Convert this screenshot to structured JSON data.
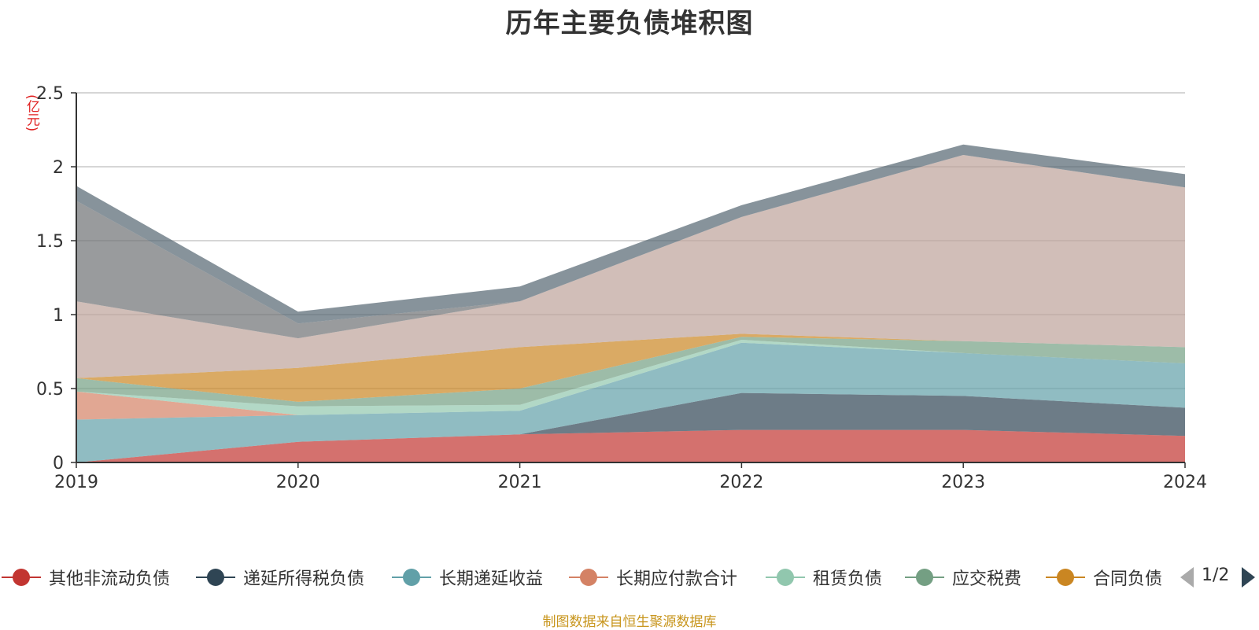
{
  "title": "历年主要负债堆积图",
  "unit": "(亿元)",
  "source_note": "制图数据来自恒生聚源数据库",
  "pager": {
    "text": "1/2"
  },
  "chart_data": {
    "type": "area",
    "stacked": true,
    "title": "历年主要负债堆积图",
    "ylabel": "(亿元)",
    "ylim": [
      0,
      2.5
    ],
    "yticks": [
      "0",
      "0.5",
      "1",
      "1.5",
      "2",
      "2.5"
    ],
    "categories": [
      "2019",
      "2020",
      "2021",
      "2022",
      "2023",
      "2024"
    ],
    "grid": true,
    "legend_position": "bottom",
    "series": [
      {
        "name": "其他非流动负债",
        "color": "#c23531",
        "legend": true,
        "values": [
          0.0,
          0.14,
          0.19,
          0.22,
          0.22,
          0.18
        ]
      },
      {
        "name": "递延所得税负债",
        "color": "#2f4554",
        "legend": true,
        "values": [
          0.0,
          0.0,
          0.0,
          0.25,
          0.23,
          0.19
        ]
      },
      {
        "name": "长期递延收益",
        "color": "#61a0a8",
        "legend": true,
        "values": [
          0.29,
          0.18,
          0.16,
          0.34,
          0.29,
          0.3
        ]
      },
      {
        "name": "长期应付款合计",
        "color": "#d48265",
        "legend": true,
        "values": [
          0.19,
          0.0,
          0.0,
          0.0,
          0.0,
          0.0
        ]
      },
      {
        "name": "租赁负债",
        "color": "#91c7ae",
        "legend": true,
        "values": [
          0.0,
          0.06,
          0.04,
          0.02,
          0.0,
          0.0
        ]
      },
      {
        "name": "应交税费",
        "color": "#749f83",
        "legend": true,
        "values": [
          0.09,
          0.03,
          0.11,
          0.02,
          0.08,
          0.11
        ]
      },
      {
        "name": "合同负债",
        "color": "#ca8622",
        "legend": true,
        "values": [
          0.0,
          0.23,
          0.28,
          0.02,
          0.0,
          0.0
        ]
      },
      {
        "name": "",
        "color": "#bda29a",
        "legend": false,
        "values": [
          0.52,
          0.2,
          0.31,
          0.79,
          1.26,
          1.08
        ]
      },
      {
        "name": "",
        "color": "#6e7074",
        "legend": false,
        "values": [
          0.68,
          0.1,
          0.0,
          0.0,
          0.0,
          0.0
        ]
      },
      {
        "name": "",
        "color": "#546570",
        "legend": false,
        "values": [
          0.1,
          0.08,
          0.1,
          0.08,
          0.07,
          0.09
        ]
      }
    ]
  }
}
